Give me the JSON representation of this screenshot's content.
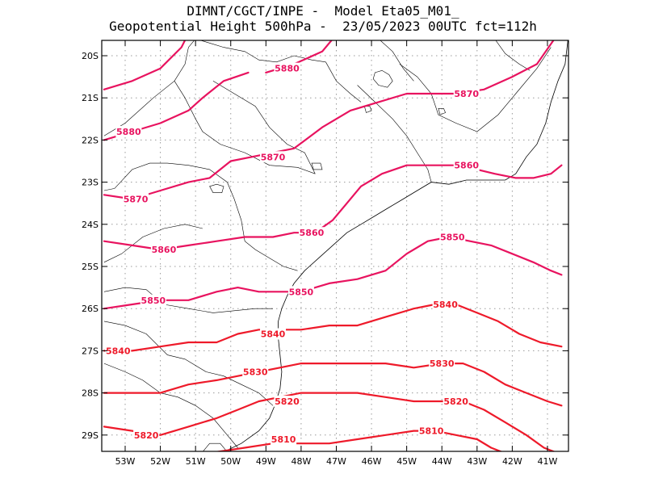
{
  "title": {
    "line1": "DIMNT/CGCT/INPE -  Model Eta05_M01_",
    "line2": "Geopotential Height 500hPa -  23/05/2023 00UTC fct=112h"
  },
  "axes": {
    "lon_ticks": [
      "53W",
      "52W",
      "51W",
      "50W",
      "49W",
      "48W",
      "47W",
      "46W",
      "45W",
      "44W",
      "43W",
      "42W",
      "41W"
    ],
    "lat_ticks": [
      "20S",
      "21S",
      "22S",
      "23S",
      "24S",
      "25S",
      "26S",
      "27S",
      "28S",
      "29S"
    ]
  },
  "colors": {
    "contour_high": "#e8135f",
    "contour_low": "#ee1a2a",
    "coast": "#000000",
    "grid": "#9a9a9a"
  },
  "contours": [
    {
      "level": "5880",
      "labels": [
        {
          "lon": -48.4,
          "lat": -20.3
        },
        {
          "lon": -52.9,
          "lat": -21.8
        }
      ],
      "points": [
        [
          -53.6,
          -20.8
        ],
        [
          -52.8,
          -20.6
        ],
        [
          -52.0,
          -20.3
        ],
        [
          -51.4,
          -19.8
        ],
        [
          -51.1,
          -19.3
        ]
      ]
    },
    {
      "level": "5880",
      "labels": [],
      "points": [
        [
          -49.0,
          -20.4
        ],
        [
          -48.2,
          -20.2
        ],
        [
          -47.4,
          -19.9
        ],
        [
          -46.9,
          -19.4
        ]
      ]
    },
    {
      "level": "5880",
      "labels": [],
      "points": [
        [
          -53.6,
          -22.0
        ],
        [
          -52.8,
          -21.8
        ],
        [
          -52.0,
          -21.6
        ],
        [
          -51.2,
          -21.3
        ],
        [
          -50.8,
          -21.0
        ],
        [
          -50.2,
          -20.6
        ],
        [
          -49.5,
          -20.4
        ]
      ]
    },
    {
      "level": "5870",
      "labels": [
        {
          "lon": -43.3,
          "lat": -20.9
        },
        {
          "lon": -48.8,
          "lat": -22.4
        },
        {
          "lon": -52.7,
          "lat": -23.4
        }
      ],
      "points": [
        [
          -53.6,
          -23.3
        ],
        [
          -52.8,
          -23.4
        ],
        [
          -52.0,
          -23.2
        ],
        [
          -51.2,
          -23.0
        ],
        [
          -50.6,
          -22.9
        ],
        [
          -50.0,
          -22.5
        ],
        [
          -49.4,
          -22.4
        ],
        [
          -48.2,
          -22.2
        ],
        [
          -47.4,
          -21.7
        ],
        [
          -46.6,
          -21.3
        ],
        [
          -45.8,
          -21.1
        ],
        [
          -45.0,
          -20.9
        ],
        [
          -44.2,
          -20.9
        ],
        [
          -43.6,
          -20.9
        ],
        [
          -42.8,
          -20.8
        ],
        [
          -42.0,
          -20.5
        ],
        [
          -41.3,
          -20.2
        ],
        [
          -40.8,
          -19.6
        ],
        [
          -40.7,
          -19.3
        ]
      ]
    },
    {
      "level": "5860",
      "labels": [
        {
          "lon": -43.3,
          "lat": -22.6
        },
        {
          "lon": -47.7,
          "lat": -24.2
        },
        {
          "lon": -51.9,
          "lat": -24.6
        }
      ],
      "points": [
        [
          -53.6,
          -24.4
        ],
        [
          -52.8,
          -24.5
        ],
        [
          -52.0,
          -24.6
        ],
        [
          -51.2,
          -24.5
        ],
        [
          -50.4,
          -24.4
        ],
        [
          -49.6,
          -24.3
        ],
        [
          -48.8,
          -24.3
        ],
        [
          -48.2,
          -24.2
        ],
        [
          -47.6,
          -24.2
        ],
        [
          -47.1,
          -23.9
        ],
        [
          -46.7,
          -23.5
        ],
        [
          -46.3,
          -23.1
        ],
        [
          -45.7,
          -22.8
        ],
        [
          -45.0,
          -22.6
        ],
        [
          -44.2,
          -22.6
        ],
        [
          -43.6,
          -22.6
        ],
        [
          -43.0,
          -22.7
        ],
        [
          -42.5,
          -22.8
        ],
        [
          -41.9,
          -22.9
        ],
        [
          -41.4,
          -22.9
        ],
        [
          -40.9,
          -22.8
        ],
        [
          -40.6,
          -22.6
        ]
      ]
    },
    {
      "level": "5850",
      "labels": [
        {
          "lon": -43.7,
          "lat": -24.3
        },
        {
          "lon": -48.0,
          "lat": -25.6
        },
        {
          "lon": -52.2,
          "lat": -25.8
        }
      ],
      "points": [
        [
          -53.6,
          -26.0
        ],
        [
          -52.8,
          -25.9
        ],
        [
          -52.0,
          -25.8
        ],
        [
          -51.2,
          -25.8
        ],
        [
          -50.4,
          -25.6
        ],
        [
          -49.8,
          -25.5
        ],
        [
          -49.2,
          -25.6
        ],
        [
          -48.6,
          -25.6
        ],
        [
          -48.0,
          -25.6
        ],
        [
          -47.2,
          -25.4
        ],
        [
          -46.4,
          -25.3
        ],
        [
          -45.6,
          -25.1
        ],
        [
          -45.0,
          -24.7
        ],
        [
          -44.4,
          -24.4
        ],
        [
          -43.8,
          -24.3
        ],
        [
          -43.2,
          -24.4
        ],
        [
          -42.6,
          -24.5
        ],
        [
          -42.0,
          -24.7
        ],
        [
          -41.4,
          -24.9
        ],
        [
          -40.9,
          -25.1
        ],
        [
          -40.6,
          -25.2
        ]
      ]
    },
    {
      "level": "5840",
      "labels": [
        {
          "lon": -43.9,
          "lat": -25.9
        },
        {
          "lon": -48.8,
          "lat": -26.6
        },
        {
          "lon": -53.2,
          "lat": -27.0
        }
      ],
      "points": [
        [
          -53.6,
          -27.0
        ],
        [
          -52.8,
          -27.0
        ],
        [
          -52.0,
          -26.9
        ],
        [
          -51.2,
          -26.8
        ],
        [
          -50.4,
          -26.8
        ],
        [
          -49.8,
          -26.6
        ],
        [
          -49.2,
          -26.5
        ],
        [
          -48.6,
          -26.5
        ],
        [
          -48.0,
          -26.5
        ],
        [
          -47.2,
          -26.4
        ],
        [
          -46.4,
          -26.4
        ],
        [
          -45.6,
          -26.2
        ],
        [
          -44.8,
          -26.0
        ],
        [
          -44.2,
          -25.9
        ],
        [
          -43.6,
          -25.9
        ],
        [
          -43.0,
          -26.1
        ],
        [
          -42.4,
          -26.3
        ],
        [
          -41.8,
          -26.6
        ],
        [
          -41.2,
          -26.8
        ],
        [
          -40.6,
          -26.9
        ]
      ]
    },
    {
      "level": "5830",
      "labels": [
        {
          "lon": -44.0,
          "lat": -27.3
        },
        {
          "lon": -49.3,
          "lat": -27.5
        }
      ],
      "points": [
        [
          -53.6,
          -28.0
        ],
        [
          -52.8,
          -28.0
        ],
        [
          -52.0,
          -28.0
        ],
        [
          -51.2,
          -27.8
        ],
        [
          -50.4,
          -27.7
        ],
        [
          -49.8,
          -27.6
        ],
        [
          -49.2,
          -27.5
        ],
        [
          -48.6,
          -27.4
        ],
        [
          -48.0,
          -27.3
        ],
        [
          -47.2,
          -27.3
        ],
        [
          -46.4,
          -27.3
        ],
        [
          -45.6,
          -27.3
        ],
        [
          -44.8,
          -27.4
        ],
        [
          -44.0,
          -27.3
        ],
        [
          -43.4,
          -27.3
        ],
        [
          -42.8,
          -27.5
        ],
        [
          -42.2,
          -27.8
        ],
        [
          -41.6,
          -28.0
        ],
        [
          -41.0,
          -28.2
        ],
        [
          -40.6,
          -28.3
        ]
      ]
    },
    {
      "level": "5820",
      "labels": [
        {
          "lon": -43.6,
          "lat": -28.2
        },
        {
          "lon": -48.4,
          "lat": -28.2
        },
        {
          "lon": -52.4,
          "lat": -29.0
        }
      ],
      "points": [
        [
          -53.6,
          -28.8
        ],
        [
          -52.8,
          -28.9
        ],
        [
          -52.0,
          -29.0
        ],
        [
          -51.2,
          -28.8
        ],
        [
          -50.4,
          -28.6
        ],
        [
          -49.8,
          -28.4
        ],
        [
          -49.2,
          -28.2
        ],
        [
          -48.6,
          -28.1
        ],
        [
          -48.0,
          -28.0
        ],
        [
          -47.2,
          -28.0
        ],
        [
          -46.4,
          -28.0
        ],
        [
          -45.6,
          -28.1
        ],
        [
          -44.8,
          -28.2
        ],
        [
          -44.0,
          -28.2
        ],
        [
          -43.4,
          -28.2
        ],
        [
          -42.8,
          -28.4
        ],
        [
          -42.2,
          -28.7
        ],
        [
          -41.6,
          -29.0
        ],
        [
          -41.1,
          -29.3
        ],
        [
          -40.8,
          -29.4
        ]
      ]
    },
    {
      "level": "5810",
      "labels": [
        {
          "lon": -44.3,
          "lat": -28.9
        },
        {
          "lon": -48.5,
          "lat": -29.1
        }
      ],
      "points": [
        [
          -50.4,
          -29.4
        ],
        [
          -49.6,
          -29.3
        ],
        [
          -48.8,
          -29.2
        ],
        [
          -48.0,
          -29.2
        ],
        [
          -47.2,
          -29.2
        ],
        [
          -46.4,
          -29.1
        ],
        [
          -45.6,
          -29.0
        ],
        [
          -44.8,
          -28.9
        ],
        [
          -44.2,
          -28.9
        ],
        [
          -43.6,
          -29.0
        ],
        [
          -43.0,
          -29.1
        ],
        [
          -42.6,
          -29.3
        ],
        [
          -42.3,
          -29.4
        ]
      ]
    }
  ],
  "coastline": [
    [
      -50.2,
      -29.4
    ],
    [
      -49.7,
      -29.2
    ],
    [
      -49.2,
      -28.9
    ],
    [
      -48.9,
      -28.6
    ],
    [
      -48.75,
      -28.3
    ],
    [
      -48.6,
      -27.9
    ],
    [
      -48.55,
      -27.5
    ],
    [
      -48.6,
      -27.1
    ],
    [
      -48.65,
      -26.7
    ],
    [
      -48.65,
      -26.3
    ],
    [
      -48.55,
      -26.0
    ],
    [
      -48.4,
      -25.7
    ],
    [
      -48.2,
      -25.4
    ],
    [
      -47.9,
      -25.1
    ],
    [
      -47.5,
      -24.8
    ],
    [
      -47.1,
      -24.5
    ],
    [
      -46.7,
      -24.2
    ],
    [
      -46.3,
      -24.0
    ],
    [
      -45.9,
      -23.8
    ],
    [
      -45.5,
      -23.6
    ],
    [
      -45.1,
      -23.4
    ],
    [
      -44.7,
      -23.2
    ],
    [
      -44.3,
      -23.0
    ],
    [
      -43.8,
      -23.05
    ],
    [
      -43.3,
      -22.95
    ],
    [
      -42.8,
      -22.95
    ],
    [
      -42.2,
      -22.95
    ],
    [
      -41.9,
      -22.8
    ],
    [
      -41.6,
      -22.4
    ],
    [
      -41.3,
      -22.1
    ],
    [
      -41.05,
      -21.6
    ],
    [
      -40.9,
      -21.1
    ],
    [
      -40.7,
      -20.6
    ],
    [
      -40.5,
      -20.2
    ],
    [
      -40.4,
      -19.5
    ]
  ],
  "borders": [
    [
      [
        -53.6,
        -21.9
      ],
      [
        -53.0,
        -21.6
      ],
      [
        -52.2,
        -21.0
      ],
      [
        -51.6,
        -20.6
      ],
      [
        -51.3,
        -20.2
      ],
      [
        -51.2,
        -19.8
      ],
      [
        -51.0,
        -19.6
      ],
      [
        -50.6,
        -19.7
      ],
      [
        -50.2,
        -19.8
      ],
      [
        -49.6,
        -19.9
      ],
      [
        -49.2,
        -20.1
      ],
      [
        -48.7,
        -20.15
      ],
      [
        -48.2,
        -20.0
      ],
      [
        -47.7,
        -20.1
      ],
      [
        -47.3,
        -20.15
      ]
    ],
    [
      [
        -51.6,
        -20.6
      ],
      [
        -51.3,
        -21.0
      ],
      [
        -51.0,
        -21.5
      ],
      [
        -50.8,
        -21.8
      ],
      [
        -50.3,
        -22.1
      ],
      [
        -49.6,
        -22.3
      ],
      [
        -48.9,
        -22.6
      ],
      [
        -48.1,
        -22.65
      ],
      [
        -47.6,
        -22.8
      ]
    ],
    [
      [
        -53.6,
        -23.2
      ],
      [
        -53.3,
        -23.15
      ],
      [
        -52.8,
        -22.7
      ],
      [
        -52.3,
        -22.55
      ],
      [
        -51.8,
        -22.55
      ],
      [
        -51.2,
        -22.6
      ],
      [
        -50.6,
        -22.7
      ],
      [
        -50.1,
        -23.0
      ],
      [
        -49.9,
        -23.4
      ],
      [
        -49.7,
        -23.9
      ],
      [
        -49.6,
        -24.4
      ],
      [
        -49.3,
        -24.6
      ],
      [
        -48.9,
        -24.8
      ],
      [
        -48.5,
        -25.0
      ],
      [
        -48.1,
        -25.1
      ]
    ],
    [
      [
        -46.4,
        -20.7
      ],
      [
        -45.9,
        -21.1
      ],
      [
        -45.4,
        -21.5
      ],
      [
        -45.0,
        -21.9
      ],
      [
        -44.7,
        -22.3
      ],
      [
        -44.4,
        -22.7
      ],
      [
        -44.3,
        -23.0
      ]
    ],
    [
      [
        -45.2,
        -20.2
      ],
      [
        -44.7,
        -20.5
      ],
      [
        -44.3,
        -20.9
      ],
      [
        -44.1,
        -21.4
      ],
      [
        -43.6,
        -21.6
      ],
      [
        -43.0,
        -21.8
      ],
      [
        -42.4,
        -21.4
      ],
      [
        -41.9,
        -20.9
      ],
      [
        -41.3,
        -20.3
      ],
      [
        -40.9,
        -19.8
      ]
    ],
    [
      [
        -53.6,
        -25.6
      ],
      [
        -53.0,
        -25.5
      ],
      [
        -52.4,
        -25.55
      ],
      [
        -51.9,
        -25.9
      ],
      [
        -51.2,
        -26.0
      ],
      [
        -50.5,
        -26.1
      ],
      [
        -49.9,
        -26.05
      ],
      [
        -49.3,
        -26.0
      ],
      [
        -48.8,
        -26.0
      ]
    ],
    [
      [
        -53.6,
        -26.3
      ],
      [
        -53.0,
        -26.4
      ],
      [
        -52.4,
        -26.6
      ],
      [
        -51.8,
        -27.1
      ],
      [
        -51.3,
        -27.2
      ],
      [
        -50.7,
        -27.5
      ],
      [
        -50.2,
        -27.6
      ],
      [
        -49.7,
        -27.8
      ],
      [
        -49.2,
        -28.0
      ],
      [
        -48.8,
        -28.3
      ]
    ],
    [
      [
        -53.6,
        -27.3
      ],
      [
        -53.0,
        -27.5
      ],
      [
        -52.5,
        -27.7
      ],
      [
        -52.0,
        -28.0
      ],
      [
        -51.5,
        -28.1
      ],
      [
        -51.0,
        -28.3
      ],
      [
        -50.5,
        -28.6
      ],
      [
        -50.1,
        -29.0
      ],
      [
        -49.8,
        -29.3
      ]
    ],
    [
      [
        -50.8,
        -29.4
      ],
      [
        -50.6,
        -29.2
      ],
      [
        -50.3,
        -29.2
      ],
      [
        -50.1,
        -29.4
      ]
    ],
    [
      [
        -47.3,
        -20.15
      ],
      [
        -47.0,
        -20.6
      ],
      [
        -46.6,
        -20.9
      ],
      [
        -46.3,
        -21.1
      ]
    ],
    [
      [
        -47.6,
        -22.8
      ],
      [
        -47.9,
        -22.3
      ],
      [
        -48.4,
        -22.1
      ],
      [
        -48.9,
        -21.7
      ],
      [
        -49.3,
        -21.2
      ],
      [
        -49.9,
        -20.9
      ],
      [
        -50.5,
        -20.6
      ]
    ],
    [
      [
        -53.6,
        -24.9
      ],
      [
        -53.1,
        -24.7
      ],
      [
        -52.5,
        -24.3
      ],
      [
        -51.9,
        -24.1
      ],
      [
        -51.3,
        -24.0
      ],
      [
        -50.8,
        -24.1
      ]
    ],
    [
      [
        -45.8,
        -19.6
      ],
      [
        -45.4,
        -19.9
      ],
      [
        -45.1,
        -20.3
      ],
      [
        -44.8,
        -20.6
      ]
    ],
    [
      [
        -42.5,
        -19.6
      ],
      [
        -42.2,
        -19.95
      ],
      [
        -41.8,
        -20.2
      ],
      [
        -41.5,
        -20.35
      ]
    ]
  ],
  "lakes": [
    [
      [
        -45.9,
        -20.4
      ],
      [
        -45.7,
        -20.35
      ],
      [
        -45.5,
        -20.45
      ],
      [
        -45.4,
        -20.6
      ],
      [
        -45.55,
        -20.75
      ],
      [
        -45.8,
        -20.7
      ],
      [
        -45.95,
        -20.55
      ],
      [
        -45.9,
        -20.4
      ]
    ],
    [
      [
        -44.1,
        -21.25
      ],
      [
        -43.95,
        -21.25
      ],
      [
        -43.9,
        -21.35
      ],
      [
        -44.05,
        -21.4
      ],
      [
        -44.1,
        -21.25
      ]
    ],
    [
      [
        -50.6,
        -23.1
      ],
      [
        -50.4,
        -23.05
      ],
      [
        -50.2,
        -23.1
      ],
      [
        -50.25,
        -23.25
      ],
      [
        -50.5,
        -23.25
      ],
      [
        -50.6,
        -23.1
      ]
    ],
    [
      [
        -47.7,
        -22.55
      ],
      [
        -47.45,
        -22.55
      ],
      [
        -47.4,
        -22.7
      ],
      [
        -47.65,
        -22.7
      ],
      [
        -47.7,
        -22.55
      ]
    ],
    [
      [
        -46.2,
        -21.2
      ],
      [
        -46.05,
        -21.2
      ],
      [
        -46.0,
        -21.3
      ],
      [
        -46.15,
        -21.35
      ],
      [
        -46.2,
        -21.2
      ]
    ]
  ]
}
